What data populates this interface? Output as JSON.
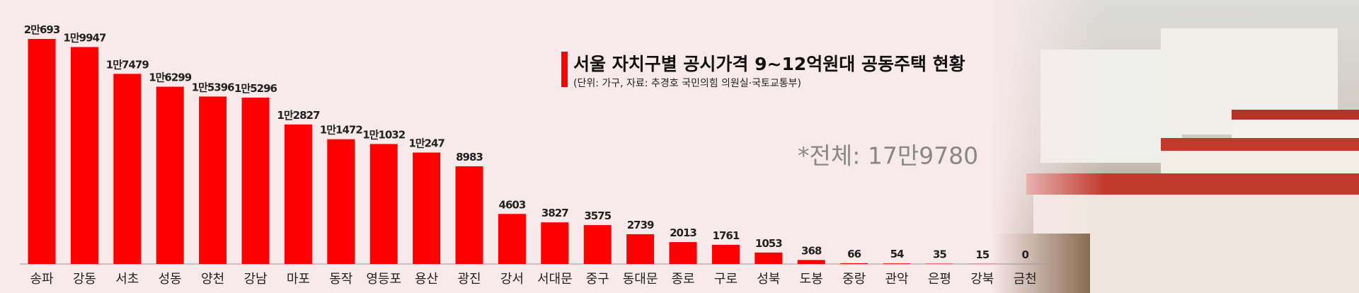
{
  "chart_data": {
    "type": "bar",
    "title": "서울 자치구별 공시가격 9~12억원대 공동주택 현황",
    "subtitle": "(단위: 가구, 자료: 추경호 국민의힘 의원실·국토교통부)",
    "annotation": "*전체: 17만9780",
    "categories": [
      "송파",
      "강동",
      "서초",
      "성동",
      "양천",
      "강남",
      "마포",
      "동작",
      "영등포",
      "용산",
      "광진",
      "강서",
      "서대문",
      "중구",
      "동대문",
      "종로",
      "구로",
      "성북",
      "도봉",
      "중랑",
      "관악",
      "은평",
      "강북",
      "금천"
    ],
    "values": [
      20693,
      19947,
      17479,
      16299,
      15396,
      15296,
      12827,
      11472,
      11032,
      10247,
      8983,
      4603,
      3827,
      3575,
      2739,
      2013,
      1761,
      1053,
      368,
      66,
      54,
      35,
      15,
      0
    ],
    "value_labels": [
      "2만693",
      "1만9947",
      "1만7479",
      "1만6299",
      "1만5396",
      "1만5296",
      "1만2827",
      "1만1472",
      "1만1032",
      "1만247",
      "8983",
      "4603",
      "3827",
      "3575",
      "2739",
      "2013",
      "1761",
      "1053",
      "368",
      "66",
      "54",
      "35",
      "15",
      "0"
    ],
    "color": "#ff0000"
  }
}
